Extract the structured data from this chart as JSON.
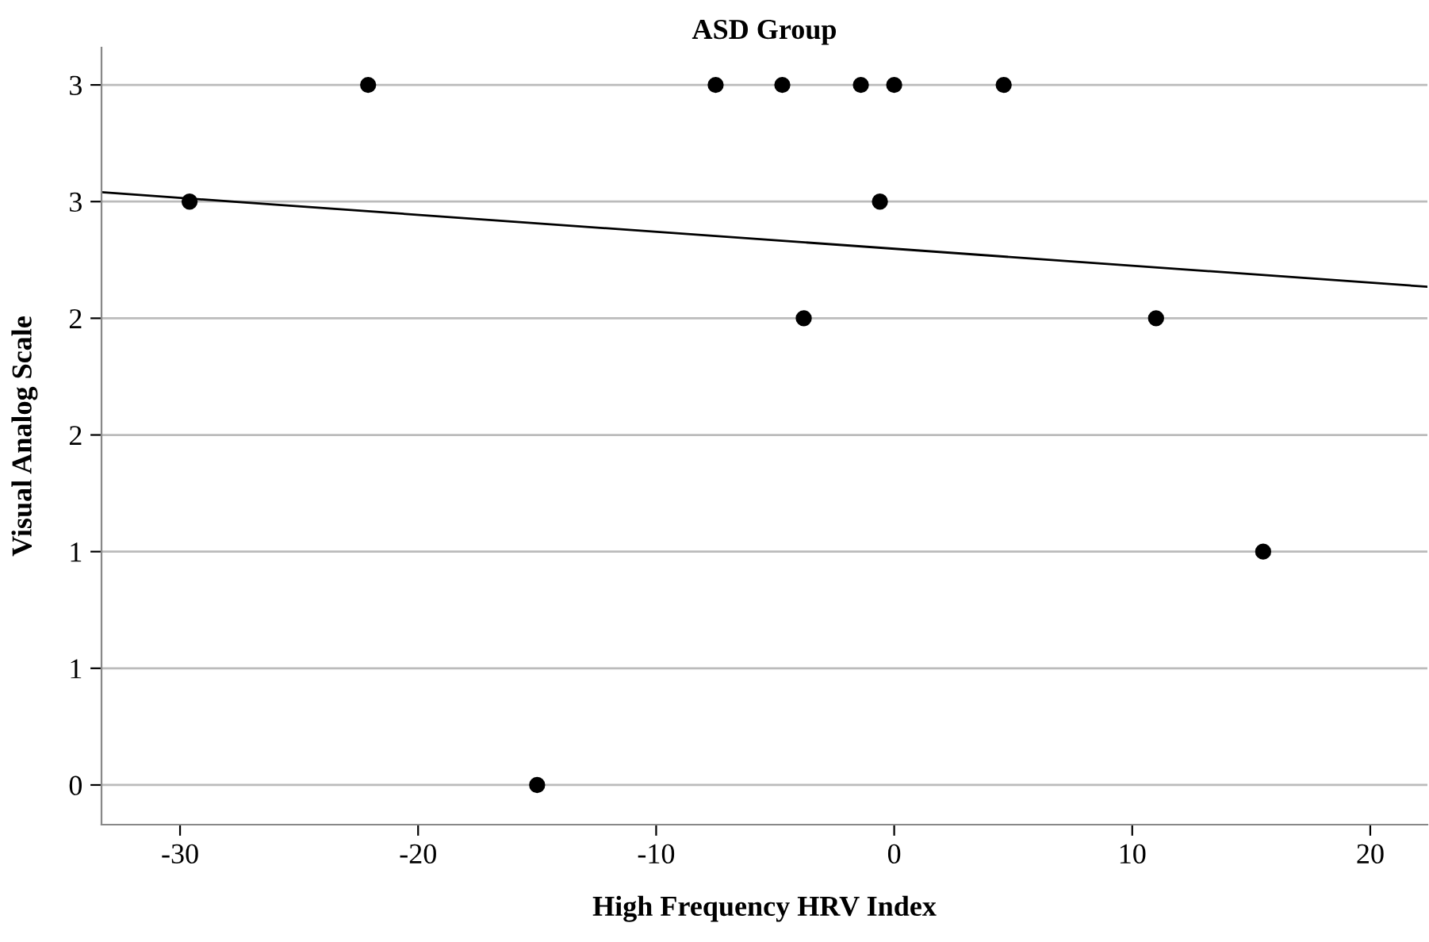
{
  "chart_data": {
    "type": "scatter",
    "title": "ASD Group",
    "xlabel": "High Frequency HRV Index",
    "ylabel": "Visual Analog Scale",
    "series": [
      {
        "marker": "circle",
        "color": "#000000",
        "x": [
          -22.1,
          -7.5,
          -4.7,
          -1.4,
          0,
          4.6,
          -29.6,
          -0.6,
          -3.8,
          11,
          15.5,
          -15
        ],
        "values": [
          3,
          3,
          3,
          3,
          3,
          3,
          2.5,
          2.5,
          2,
          2,
          1,
          0
        ]
      },
      {
        "type": "line",
        "color": "#000000",
        "x": [
          -33.3,
          22.4
        ],
        "values": [
          2.54,
          2.135
        ]
      }
    ],
    "xlim": [
      -33.3,
      22.4
    ],
    "xticks": [
      -30,
      -20,
      -10,
      0,
      10,
      20
    ],
    "ylim": [
      -0.17,
      3.16
    ],
    "yticks": [
      0,
      {
        "value": 0.5,
        "label": "1"
      },
      1,
      {
        "value": 1.5,
        "label": "2"
      },
      2,
      {
        "value": 2.5,
        "label": "3"
      },
      3
    ],
    "grid": "y"
  }
}
